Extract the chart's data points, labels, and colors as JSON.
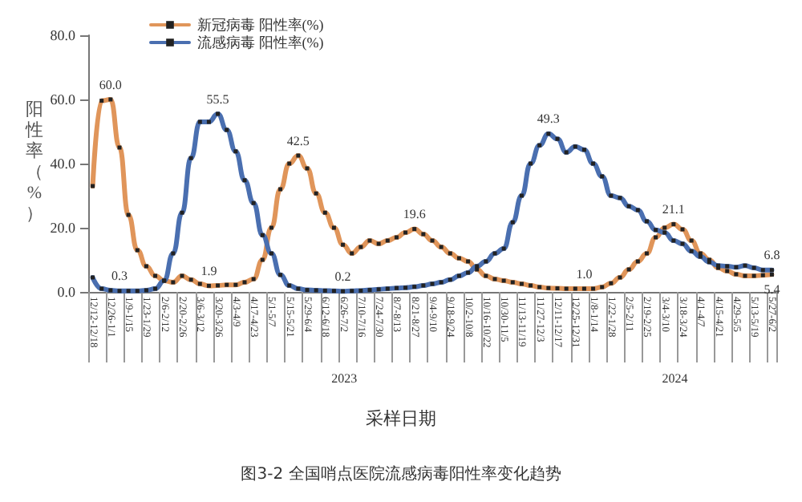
{
  "chart_data": {
    "type": "line",
    "title": "图3-2 全国哨点医院流感病毒阳性率变化趋势",
    "xlabel": "采样日期",
    "ylabel": "阳性率（%）",
    "annotations": [
      "2023",
      "2024"
    ],
    "categories": [
      "12/12-12/18",
      null,
      "12/26-1/1",
      null,
      "1/9-1/15",
      null,
      "1/23-1/29",
      null,
      "2/6-2/12",
      null,
      "2/20-2/26",
      null,
      "3/6-3/12",
      null,
      "3/20-3/26",
      null,
      "4/3-4/9",
      null,
      "4/17-4/23",
      null,
      "5/1-5/7",
      null,
      "5/15-5/21",
      null,
      "5/29-6/4",
      null,
      "6/12-6/18",
      null,
      "6/26-7/2",
      null,
      "7/10-7/16",
      null,
      "7/24-7/30",
      null,
      "8/7-8/13",
      null,
      "8/21-8/27",
      null,
      "9/4-9/10",
      null,
      "9/18-9/24",
      null,
      "10/2-10/8",
      null,
      "10/16-10/22",
      null,
      "10/30-11/5",
      null,
      "11/13-11/19",
      null,
      "11/27-12/3",
      null,
      "12/11-12/17",
      null,
      "12/25-12/31",
      null,
      "1/8-1/14",
      null,
      "1/22-1/28",
      null,
      "2/5-2/11",
      null,
      "2/19-2/25",
      null,
      "3/4-3/10",
      null,
      "3/18-3/24",
      null,
      "4/1-4/7",
      null,
      "4/15-4/21",
      null,
      "4/29-5/5",
      null,
      "5/13-5/19",
      null,
      "5/27-6/2"
    ],
    "series": [
      {
        "name": "新冠病毒 阳性率(%)",
        "color": "#e0955a",
        "values": [
          33,
          59.6,
          60.0,
          45,
          24,
          13,
          8,
          5,
          3.5,
          3,
          5,
          3.8,
          2.5,
          1.9,
          2,
          2.2,
          2.2,
          3,
          4,
          10,
          20,
          32,
          40,
          42.5,
          38.5,
          30.7,
          24.7,
          20,
          14.7,
          12,
          14,
          16,
          15,
          16,
          17,
          18.5,
          19.6,
          18,
          16,
          14,
          12,
          10.5,
          9.5,
          7,
          5,
          4,
          3.5,
          3,
          2.5,
          2,
          1.5,
          1.2,
          1.1,
          1.0,
          1.0,
          1.0,
          1.0,
          1.5,
          2.7,
          4.5,
          7,
          9.5,
          12,
          17,
          20,
          21.1,
          19.5,
          16,
          12,
          10,
          7.5,
          6.5,
          5.5,
          5,
          5,
          5.2,
          5.4
        ],
        "value_labels": [
          null,
          null,
          "60.0",
          null,
          null,
          null,
          null,
          null,
          null,
          null,
          null,
          null,
          null,
          "1.9",
          null,
          null,
          null,
          null,
          null,
          null,
          null,
          null,
          null,
          "42.5",
          null,
          null,
          null,
          null,
          null,
          null,
          null,
          null,
          null,
          null,
          null,
          null,
          "19.6",
          null,
          null,
          null,
          null,
          null,
          null,
          null,
          null,
          null,
          null,
          null,
          null,
          null,
          null,
          null,
          null,
          null,
          null,
          "1.0",
          null,
          null,
          null,
          null,
          null,
          null,
          null,
          null,
          null,
          "21.1",
          null,
          null,
          null,
          null,
          null,
          null,
          null,
          null,
          null,
          null,
          "5.4"
        ]
      },
      {
        "name": "流感病毒 阳性率(%)",
        "color": "#4a6fb0",
        "values": [
          4.5,
          1,
          0.5,
          0.3,
          0.3,
          0.3,
          0.5,
          1,
          3.5,
          12,
          24.7,
          41.7,
          53,
          53,
          55.5,
          50.5,
          43.8,
          34.8,
          27.7,
          17.7,
          12,
          5.3,
          2,
          1,
          0.6,
          0.5,
          0.4,
          0.3,
          0.2,
          0.3,
          0.4,
          0.6,
          0.8,
          1,
          1.2,
          1.3,
          1.6,
          2,
          2.5,
          3,
          3.8,
          5,
          6,
          8,
          9.5,
          12,
          13.5,
          21.7,
          30,
          40,
          45.7,
          49.3,
          47.7,
          43.5,
          45.3,
          44.3,
          40,
          36,
          30,
          29.3,
          26.7,
          25.5,
          22,
          19.3,
          18.5,
          16,
          15,
          12.7,
          11,
          9.3,
          8.2,
          8,
          7.7,
          8.2,
          7.5,
          6.8,
          6.8
        ],
        "value_labels": [
          null,
          null,
          null,
          "0.3",
          null,
          null,
          null,
          null,
          null,
          null,
          null,
          null,
          null,
          null,
          "55.5",
          null,
          null,
          null,
          null,
          null,
          null,
          null,
          null,
          null,
          null,
          null,
          null,
          null,
          "0.2",
          null,
          null,
          null,
          null,
          null,
          null,
          null,
          null,
          null,
          null,
          null,
          null,
          null,
          null,
          null,
          null,
          null,
          null,
          null,
          null,
          null,
          null,
          "49.3",
          null,
          null,
          null,
          null,
          null,
          null,
          null,
          null,
          null,
          null,
          null,
          null,
          null,
          null,
          null,
          null,
          null,
          null,
          null,
          null,
          null,
          null,
          null,
          null,
          "6.8"
        ]
      }
    ],
    "ylim": [
      0,
      80
    ],
    "yticks": [
      {
        "value": 0,
        "label": "0.0"
      },
      {
        "value": 20,
        "label": "20.0"
      },
      {
        "value": 40,
        "label": "40.0"
      },
      {
        "value": 60,
        "label": "60.0"
      },
      {
        "value": 80,
        "label": "80.0"
      }
    ],
    "legend": "top left",
    "marker": "square",
    "line_style": "solid"
  }
}
